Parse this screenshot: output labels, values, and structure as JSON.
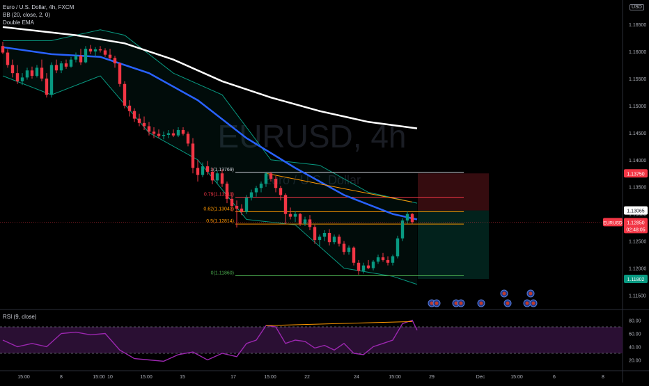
{
  "legend": {
    "symbol": "Euro / U.S. Dollar, 4h, FXCM",
    "bb": "BB (20, close, 2, 0)",
    "ema": "Double EMA"
  },
  "currency_badge": "USD",
  "watermark": {
    "main": "EURUSD, 4h",
    "sub": "Euro / U.S. Dollar"
  },
  "rsi_label": "RSI (9, close)",
  "price_axis": {
    "ticks": [
      "1.16500",
      "1.16000",
      "1.15500",
      "1.15000",
      "1.14500",
      "1.14000",
      "1.13500",
      "1.13000",
      "1.12500",
      "1.12000",
      "1.11500"
    ],
    "tick_values": [
      1.165,
      1.16,
      1.155,
      1.15,
      1.145,
      1.14,
      1.135,
      1.13,
      1.125,
      1.12,
      1.115
    ]
  },
  "rsi_axis": {
    "ticks": [
      "80.00",
      "60.00",
      "40.00",
      "20.00"
    ],
    "tick_values": [
      80,
      60,
      40,
      20
    ]
  },
  "time_axis": [
    "15:00",
    "8",
    "15:00",
    "10",
    "15:00",
    "15",
    "17",
    "15:00",
    "22",
    "24",
    "15:00",
    "29",
    "Dec",
    "15:00",
    "6",
    "8"
  ],
  "price_tags": {
    "stop": {
      "label": "1.13750",
      "value": 1.1375,
      "color": "#f23645"
    },
    "entry": {
      "label": "1.13065",
      "value": 1.13065,
      "color": "#787b86"
    },
    "current": {
      "symbol": "EURUSD",
      "label": "1.12850",
      "countdown": "02:48:05",
      "value": 1.1285,
      "color": "#f23645"
    },
    "target": {
      "label": "1.11802",
      "value": 1.11802,
      "color": "#089981"
    }
  },
  "fib_levels": [
    {
      "label": "1(1.13769)",
      "value": 1.13769,
      "color": "#d1d4dc"
    },
    {
      "label": "0.79(1.13311)",
      "value": 1.13311,
      "color": "#f23645"
    },
    {
      "label": "0.62(1.13043)",
      "value": 1.13043,
      "color": "#ff9800"
    },
    {
      "label": "0.5(1.12814)",
      "value": 1.12814,
      "color": "#ff9800"
    },
    {
      "label": "0(1.11860)",
      "value": 1.1186,
      "color": "#4caf50"
    }
  ],
  "colors": {
    "up": "#089981",
    "down": "#f23645",
    "ema_fast": "#2962ff",
    "ema_slow": "#ffffff",
    "bb": "#089981",
    "rsi": "#9c27b0",
    "rsi_band": "#2a0f33"
  },
  "chart_data": {
    "type": "candlestick",
    "title": "Euro / U.S. Dollar, 4h, FXCM",
    "ylim": [
      1.1125,
      1.1695
    ],
    "candles": [
      [
        1.161,
        1.1618,
        1.1595,
        1.1598
      ],
      [
        1.1598,
        1.1604,
        1.157,
        1.1575
      ],
      [
        1.1575,
        1.1585,
        1.1552,
        1.156
      ],
      [
        1.156,
        1.1575,
        1.154,
        1.1545
      ],
      [
        1.1545,
        1.156,
        1.1538,
        1.1552
      ],
      [
        1.1552,
        1.157,
        1.1548,
        1.1565
      ],
      [
        1.1565,
        1.1572,
        1.155,
        1.1555
      ],
      [
        1.1555,
        1.1575,
        1.1552,
        1.157
      ],
      [
        1.157,
        1.1585,
        1.1545,
        1.155
      ],
      [
        1.155,
        1.156,
        1.1515,
        1.152
      ],
      [
        1.152,
        1.158,
        1.1515,
        1.1575
      ],
      [
        1.1575,
        1.1585,
        1.156,
        1.1565
      ],
      [
        1.1565,
        1.1582,
        1.156,
        1.1578
      ],
      [
        1.1578,
        1.1585,
        1.1568,
        1.1572
      ],
      [
        1.1572,
        1.159,
        1.157,
        1.1585
      ],
      [
        1.1585,
        1.1598,
        1.158,
        1.1592
      ],
      [
        1.1592,
        1.1605,
        1.1575,
        1.158
      ],
      [
        1.158,
        1.161,
        1.1578,
        1.1605
      ],
      [
        1.1605,
        1.1612,
        1.1595,
        1.16
      ],
      [
        1.16,
        1.1608,
        1.159,
        1.1604
      ],
      [
        1.1604,
        1.161,
        1.1598,
        1.1602
      ],
      [
        1.1602,
        1.1606,
        1.159,
        1.1594
      ],
      [
        1.1594,
        1.1605,
        1.1585,
        1.1588
      ],
      [
        1.1588,
        1.1592,
        1.157,
        1.1578
      ],
      [
        1.1578,
        1.158,
        1.1535,
        1.154
      ],
      [
        1.154,
        1.1545,
        1.1495,
        1.15
      ],
      [
        1.15,
        1.151,
        1.148,
        1.149
      ],
      [
        1.149,
        1.1495,
        1.147,
        1.1476
      ],
      [
        1.1476,
        1.1485,
        1.1462,
        1.1468
      ],
      [
        1.1468,
        1.148,
        1.1455,
        1.1462
      ],
      [
        1.1462,
        1.147,
        1.1445,
        1.1452
      ],
      [
        1.1452,
        1.146,
        1.144,
        1.1448
      ],
      [
        1.1448,
        1.1456,
        1.144,
        1.1444
      ],
      [
        1.1444,
        1.1452,
        1.1438,
        1.1446
      ],
      [
        1.1446,
        1.1455,
        1.144,
        1.1449
      ],
      [
        1.1449,
        1.1456,
        1.1442,
        1.1445
      ],
      [
        1.1445,
        1.146,
        1.1442,
        1.1455
      ],
      [
        1.1455,
        1.146,
        1.1445,
        1.1448
      ],
      [
        1.1448,
        1.1452,
        1.1425,
        1.143
      ],
      [
        1.143,
        1.144,
        1.1375,
        1.1385
      ],
      [
        1.1385,
        1.14,
        1.136,
        1.1372
      ],
      [
        1.1372,
        1.1395,
        1.1368,
        1.1388
      ],
      [
        1.1388,
        1.1398,
        1.1372,
        1.1378
      ],
      [
        1.1378,
        1.1385,
        1.1355,
        1.1362
      ],
      [
        1.1362,
        1.138,
        1.1355,
        1.1375
      ],
      [
        1.1375,
        1.1382,
        1.135,
        1.1356
      ],
      [
        1.1356,
        1.136,
        1.132,
        1.1328
      ],
      [
        1.1328,
        1.134,
        1.1305,
        1.1315
      ],
      [
        1.1315,
        1.1325,
        1.1275,
        1.131
      ],
      [
        1.131,
        1.1318,
        1.1298,
        1.1304
      ],
      [
        1.1304,
        1.1335,
        1.13,
        1.133
      ],
      [
        1.133,
        1.1345,
        1.1325,
        1.134
      ],
      [
        1.134,
        1.1352,
        1.1332,
        1.1348
      ],
      [
        1.1348,
        1.136,
        1.134,
        1.1356
      ],
      [
        1.1356,
        1.1377,
        1.135,
        1.1375
      ],
      [
        1.1375,
        1.1378,
        1.136,
        1.1365
      ],
      [
        1.1365,
        1.137,
        1.134,
        1.1348
      ],
      [
        1.1348,
        1.1352,
        1.1325,
        1.1335
      ],
      [
        1.1335,
        1.1338,
        1.1282,
        1.13
      ],
      [
        1.13,
        1.1312,
        1.129,
        1.1295
      ],
      [
        1.1295,
        1.1305,
        1.1285,
        1.13
      ],
      [
        1.13,
        1.1302,
        1.1278,
        1.1282
      ],
      [
        1.1282,
        1.1295,
        1.1278,
        1.129
      ],
      [
        1.129,
        1.1298,
        1.127,
        1.1276
      ],
      [
        1.1276,
        1.128,
        1.1245,
        1.1252
      ],
      [
        1.1252,
        1.1262,
        1.124,
        1.1258
      ],
      [
        1.1258,
        1.127,
        1.125,
        1.1265
      ],
      [
        1.1265,
        1.1272,
        1.1242,
        1.1248
      ],
      [
        1.1248,
        1.1262,
        1.1244,
        1.1258
      ],
      [
        1.1258,
        1.1262,
        1.124,
        1.1245
      ],
      [
        1.1245,
        1.125,
        1.1225,
        1.123
      ],
      [
        1.123,
        1.1242,
        1.1225,
        1.1238
      ],
      [
        1.1238,
        1.124,
        1.1205,
        1.121
      ],
      [
        1.121,
        1.1215,
        1.1188,
        1.1195
      ],
      [
        1.1195,
        1.121,
        1.119,
        1.1205
      ],
      [
        1.1205,
        1.1215,
        1.1198,
        1.12
      ],
      [
        1.12,
        1.1215,
        1.1196,
        1.1212
      ],
      [
        1.1212,
        1.1225,
        1.1208,
        1.122
      ],
      [
        1.122,
        1.1228,
        1.1212,
        1.1215
      ],
      [
        1.1215,
        1.1222,
        1.1205,
        1.121
      ],
      [
        1.121,
        1.1225,
        1.1205,
        1.1222
      ],
      [
        1.1222,
        1.126,
        1.1218,
        1.1255
      ],
      [
        1.1255,
        1.1292,
        1.125,
        1.1288
      ],
      [
        1.1288,
        1.1305,
        1.1282,
        1.13
      ],
      [
        1.13,
        1.1302,
        1.1282,
        1.1285
      ]
    ],
    "ema_fast": [
      [
        0,
        1.1608
      ],
      [
        10,
        1.1595
      ],
      [
        20,
        1.159
      ],
      [
        30,
        1.156
      ],
      [
        40,
        1.151
      ],
      [
        50,
        1.144
      ],
      [
        60,
        1.1385
      ],
      [
        70,
        1.1335
      ],
      [
        80,
        1.13
      ],
      [
        85,
        1.129
      ]
    ],
    "ema_slow": [
      [
        0,
        1.1645
      ],
      [
        15,
        1.163
      ],
      [
        25,
        1.1615
      ],
      [
        35,
        1.1585
      ],
      [
        45,
        1.1545
      ],
      [
        55,
        1.1515
      ],
      [
        65,
        1.149
      ],
      [
        75,
        1.147
      ],
      [
        85,
        1.1458
      ]
    ],
    "bb_upper": [
      [
        0,
        1.162
      ],
      [
        10,
        1.162
      ],
      [
        20,
        1.164
      ],
      [
        25,
        1.163
      ],
      [
        35,
        1.156
      ],
      [
        45,
        1.152
      ],
      [
        55,
        1.14
      ],
      [
        65,
        1.139
      ],
      [
        75,
        1.134
      ],
      [
        85,
        1.132
      ]
    ],
    "bb_lower": [
      [
        0,
        1.1555
      ],
      [
        10,
        1.152
      ],
      [
        20,
        1.1555
      ],
      [
        30,
        1.145
      ],
      [
        40,
        1.14
      ],
      [
        50,
        1.129
      ],
      [
        60,
        1.128
      ],
      [
        70,
        1.12
      ],
      [
        80,
        1.1185
      ],
      [
        85,
        1.117
      ]
    ],
    "rsi": [
      [
        0,
        50
      ],
      [
        3,
        40
      ],
      [
        6,
        45
      ],
      [
        9,
        40
      ],
      [
        12,
        60
      ],
      [
        15,
        62
      ],
      [
        18,
        58
      ],
      [
        21,
        60
      ],
      [
        24,
        35
      ],
      [
        27,
        22
      ],
      [
        30,
        20
      ],
      [
        33,
        18
      ],
      [
        36,
        28
      ],
      [
        39,
        32
      ],
      [
        42,
        20
      ],
      [
        45,
        30
      ],
      [
        48,
        25
      ],
      [
        50,
        45
      ],
      [
        52,
        50
      ],
      [
        54,
        72
      ],
      [
        56,
        70
      ],
      [
        58,
        45
      ],
      [
        60,
        50
      ],
      [
        62,
        48
      ],
      [
        64,
        38
      ],
      [
        66,
        42
      ],
      [
        68,
        35
      ],
      [
        70,
        45
      ],
      [
        72,
        30
      ],
      [
        74,
        28
      ],
      [
        76,
        40
      ],
      [
        78,
        45
      ],
      [
        80,
        50
      ],
      [
        82,
        75
      ],
      [
        84,
        80
      ],
      [
        85,
        65
      ]
    ],
    "rsi_band": [
      30,
      70
    ],
    "divergence_line": [
      [
        54,
        72
      ],
      [
        84,
        78
      ]
    ]
  }
}
